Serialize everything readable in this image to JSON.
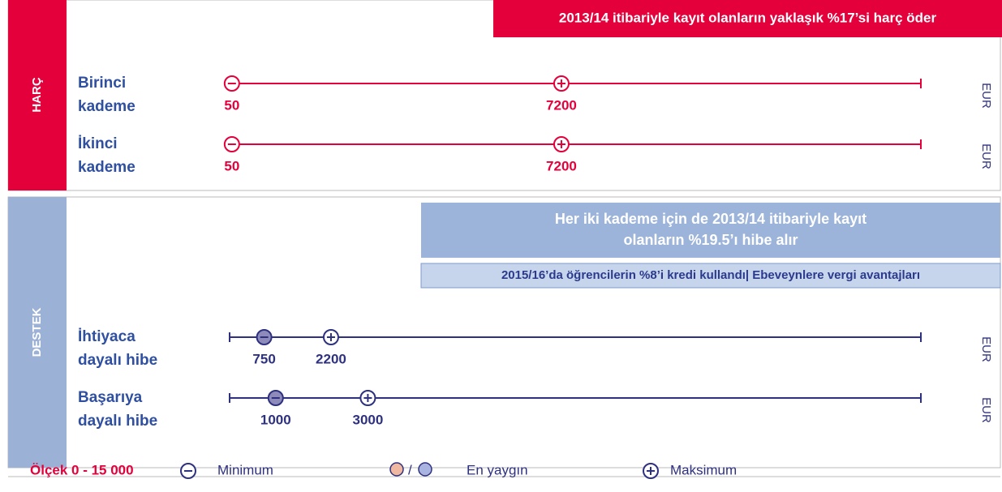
{
  "scale": {
    "label": "Ölçek 0 - 15 000",
    "xlim": [
      0,
      15000
    ]
  },
  "sections": [
    {
      "title": "HARÇ",
      "banners": [
        [
          "2013/14 itibariyle kayıt olanların yaklaşık %17’si harç öder"
        ]
      ],
      "rows": [
        {
          "label": [
            "Birinci",
            "kademe"
          ],
          "min": 50,
          "max": 7200,
          "unit": "EUR"
        },
        {
          "label": [
            "İkinci",
            "kademe"
          ],
          "min": 50,
          "max": 7200,
          "unit": "EUR"
        }
      ]
    },
    {
      "title": "DESTEK",
      "banners": [
        [
          "Her iki kademe için de 2013/14 itibariyle kayıt",
          "olanların %19.5’ı hibe alır"
        ],
        [
          "2015/16’da öğrencilerin %8’i kredi kullandı| Ebeveynlere vergi avantajları"
        ]
      ],
      "rows": [
        {
          "label": [
            "İhtiyaca",
            "dayalı hibe"
          ],
          "min": 750,
          "max": 2200,
          "unit": "EUR"
        },
        {
          "label": [
            "Başarıya",
            "dayalı hibe"
          ],
          "min": 1000,
          "max": 3000,
          "unit": "EUR"
        }
      ]
    }
  ],
  "legend": {
    "minimum": "Minimum",
    "separator": "/",
    "common": "En yaygın",
    "maximum": "Maksimum"
  }
}
